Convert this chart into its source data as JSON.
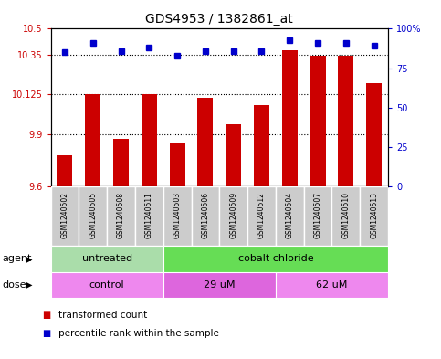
{
  "title": "GDS4953 / 1382861_at",
  "samples": [
    "GSM1240502",
    "GSM1240505",
    "GSM1240508",
    "GSM1240511",
    "GSM1240503",
    "GSM1240506",
    "GSM1240509",
    "GSM1240512",
    "GSM1240504",
    "GSM1240507",
    "GSM1240510",
    "GSM1240513"
  ],
  "bar_values": [
    9.78,
    10.127,
    9.875,
    10.125,
    9.845,
    10.108,
    9.955,
    10.065,
    10.375,
    10.345,
    10.345,
    10.19
  ],
  "dot_values": [
    85,
    91,
    86,
    88,
    83,
    86,
    86,
    86,
    93,
    91,
    91,
    89
  ],
  "bar_color": "#cc0000",
  "dot_color": "#0000cc",
  "ylim_left": [
    9.6,
    10.5
  ],
  "ylim_right": [
    0,
    100
  ],
  "yticks_left": [
    9.6,
    9.9,
    10.125,
    10.35,
    10.5
  ],
  "yticks_right": [
    0,
    25,
    50,
    75,
    100
  ],
  "ytick_labels_left": [
    "9.6",
    "9.9",
    "10.125",
    "10.35",
    "10.5"
  ],
  "ytick_labels_right": [
    "0",
    "25",
    "50",
    "75",
    "100%"
  ],
  "hlines": [
    9.9,
    10.125,
    10.35
  ],
  "agent_groups": [
    {
      "label": "untreated",
      "start": 0,
      "end": 4
    },
    {
      "label": "cobalt chloride",
      "start": 4,
      "end": 12
    }
  ],
  "agent_colors": [
    "#aaddaa",
    "#66dd55"
  ],
  "dose_groups": [
    {
      "label": "control",
      "start": 0,
      "end": 4
    },
    {
      "label": "29 uM",
      "start": 4,
      "end": 8
    },
    {
      "label": "62 uM",
      "start": 8,
      "end": 12
    }
  ],
  "dose_color": "#ee88ee",
  "dose_color2": "#dd66dd",
  "legend_red_label": "transformed count",
  "legend_blue_label": "percentile rank within the sample",
  "xlabel_agent": "agent",
  "xlabel_dose": "dose",
  "sample_bg": "#cccccc",
  "bar_width": 0.55
}
